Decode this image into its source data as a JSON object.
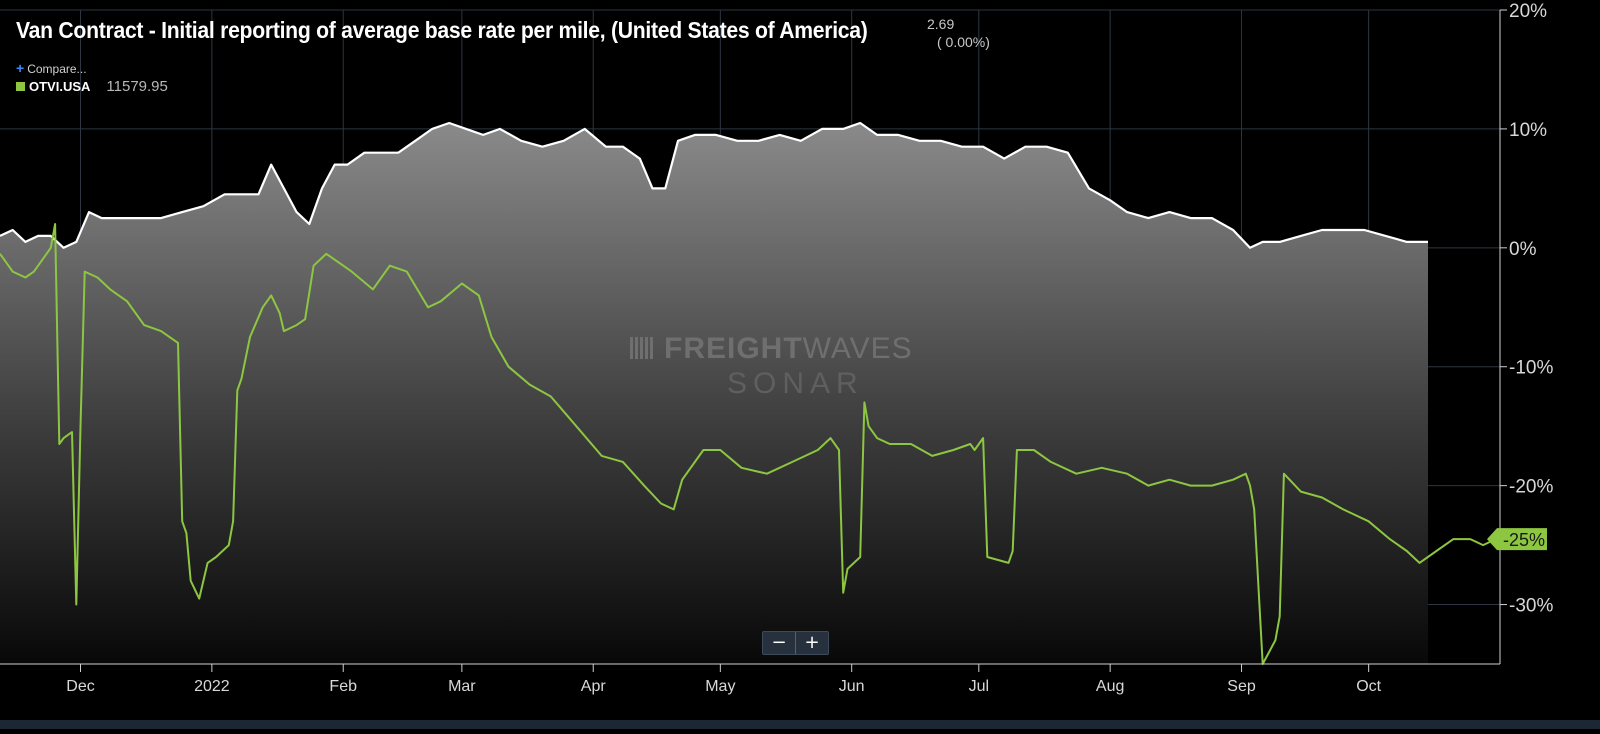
{
  "header": {
    "title": "Van Contract - Initial reporting of average base rate per mile, (United States of America)",
    "last_value": "2.69",
    "last_change": "( 0.00%)",
    "compare_label": "Compare...",
    "compare_symbol": "+"
  },
  "legend": [
    {
      "name": "OTVI.USA",
      "value": "11579.95",
      "color": "#8dc641"
    }
  ],
  "watermark": {
    "line1_bold": "FREIGHT",
    "line1_light": "WAVES",
    "line2": "SONAR"
  },
  "zoom": {
    "minus": "−",
    "plus": "+"
  },
  "colors": {
    "primary_line": "#ffffff",
    "compare_line": "#8dc641",
    "background": "#000000",
    "grid": "#2c3642"
  },
  "chart_data": {
    "type": "area",
    "title": "Van Contract - Initial reporting of average base rate per mile, (United States of America)",
    "xlabel": "",
    "ylabel": "",
    "x_tick_labels": [
      "Dec",
      "2022",
      "Feb",
      "Mar",
      "Apr",
      "May",
      "Jun",
      "Jul",
      "Aug",
      "Sep",
      "Oct"
    ],
    "y_tick_labels": [
      "20%",
      "10%",
      "0%",
      "-10%",
      "-20%",
      "-30%"
    ],
    "ylim": [
      -35,
      20
    ],
    "grid": true,
    "y_axis_position": "right",
    "end_label": "-25%",
    "series": [
      {
        "name": "Van Contract - Initial reporting of average base rate per mile, (United States of America)",
        "style": "area",
        "color": "#ffffff",
        "x": [
          "2021-11-12",
          "2021-11-15",
          "2021-11-18",
          "2021-11-21",
          "2021-11-24",
          "2021-11-27",
          "2021-11-30",
          "2021-12-03",
          "2021-12-06",
          "2021-12-10",
          "2021-12-15",
          "2021-12-20",
          "2021-12-25",
          "2021-12-30",
          "2022-01-04",
          "2022-01-08",
          "2022-01-12",
          "2022-01-15",
          "2022-01-18",
          "2022-01-21",
          "2022-01-24",
          "2022-01-27",
          "2022-01-30",
          "2022-02-02",
          "2022-02-06",
          "2022-02-10",
          "2022-02-14",
          "2022-02-18",
          "2022-02-22",
          "2022-02-26",
          "2022-03-02",
          "2022-03-06",
          "2022-03-10",
          "2022-03-15",
          "2022-03-20",
          "2022-03-25",
          "2022-03-30",
          "2022-04-04",
          "2022-04-08",
          "2022-04-12",
          "2022-04-15",
          "2022-04-18",
          "2022-04-21",
          "2022-04-25",
          "2022-04-30",
          "2022-05-05",
          "2022-05-10",
          "2022-05-15",
          "2022-05-20",
          "2022-05-25",
          "2022-05-30",
          "2022-06-03",
          "2022-06-07",
          "2022-06-12",
          "2022-06-17",
          "2022-06-22",
          "2022-06-27",
          "2022-07-02",
          "2022-07-07",
          "2022-07-12",
          "2022-07-17",
          "2022-07-22",
          "2022-07-27",
          "2022-08-01",
          "2022-08-05",
          "2022-08-10",
          "2022-08-15",
          "2022-08-20",
          "2022-08-25",
          "2022-08-30",
          "2022-09-03",
          "2022-09-06",
          "2022-09-10",
          "2022-09-15",
          "2022-09-20",
          "2022-09-25",
          "2022-09-30",
          "2022-10-05",
          "2022-10-10",
          "2022-10-15"
        ],
        "values": [
          1,
          1.5,
          0.5,
          1,
          1,
          0,
          0.5,
          3,
          2.5,
          2.5,
          2.5,
          2.5,
          3,
          3.5,
          4.5,
          4.5,
          4.5,
          7,
          5,
          3,
          2,
          5,
          7,
          7,
          8,
          8,
          8,
          9,
          10,
          10.5,
          10,
          9.5,
          10,
          9,
          8.5,
          9,
          10,
          8.5,
          8.5,
          7.5,
          5,
          5,
          9,
          9.5,
          9.5,
          9,
          9,
          9.5,
          9,
          10,
          10,
          10.5,
          9.5,
          9.5,
          9,
          9,
          8.5,
          8.5,
          7.5,
          8.5,
          8.5,
          8,
          5,
          4,
          3,
          2.5,
          3,
          2.5,
          2.5,
          1.5,
          0,
          0.5,
          0.5,
          1,
          1.5,
          1.5,
          1.5,
          1,
          0.5,
          0.5
        ]
      },
      {
        "name": "OTVI.USA",
        "style": "line",
        "color": "#8dc641",
        "x": [
          "2021-11-12",
          "2021-11-15",
          "2021-11-18",
          "2021-11-20",
          "2021-11-22",
          "2021-11-24",
          "2021-11-25",
          "2021-11-26",
          "2021-11-27",
          "2021-11-29",
          "2021-11-30",
          "2021-12-01",
          "2021-12-02",
          "2021-12-05",
          "2021-12-08",
          "2021-12-12",
          "2021-12-16",
          "2021-12-20",
          "2021-12-24",
          "2021-12-25",
          "2021-12-26",
          "2021-12-27",
          "2021-12-29",
          "2021-12-31",
          "2022-01-02",
          "2022-01-05",
          "2022-01-06",
          "2022-01-07",
          "2022-01-08",
          "2022-01-10",
          "2022-01-13",
          "2022-01-15",
          "2022-01-17",
          "2022-01-18",
          "2022-01-21",
          "2022-01-23",
          "2022-01-25",
          "2022-01-28",
          "2022-02-03",
          "2022-02-08",
          "2022-02-12",
          "2022-02-16",
          "2022-02-21",
          "2022-02-24",
          "2022-03-01",
          "2022-03-05",
          "2022-03-08",
          "2022-03-12",
          "2022-03-17",
          "2022-03-22",
          "2022-03-28",
          "2022-04-03",
          "2022-04-08",
          "2022-04-13",
          "2022-04-17",
          "2022-04-20",
          "2022-04-22",
          "2022-04-27",
          "2022-05-01",
          "2022-05-06",
          "2022-05-12",
          "2022-05-18",
          "2022-05-24",
          "2022-05-27",
          "2022-05-29",
          "2022-05-30",
          "2022-05-31",
          "2022-06-03",
          "2022-06-04",
          "2022-06-05",
          "2022-06-07",
          "2022-06-10",
          "2022-06-15",
          "2022-06-20",
          "2022-06-25",
          "2022-06-29",
          "2022-06-30",
          "2022-07-02",
          "2022-07-03",
          "2022-07-08",
          "2022-07-09",
          "2022-07-10",
          "2022-07-14",
          "2022-07-18",
          "2022-07-24",
          "2022-07-30",
          "2022-08-05",
          "2022-08-10",
          "2022-08-15",
          "2022-08-20",
          "2022-08-25",
          "2022-08-30",
          "2022-09-02",
          "2022-09-03",
          "2022-09-04",
          "2022-09-06",
          "2022-09-09",
          "2022-09-10",
          "2022-09-11",
          "2022-09-15",
          "2022-09-20",
          "2022-09-25",
          "2022-10-01",
          "2022-10-06",
          "2022-10-10",
          "2022-10-13",
          "2022-10-17",
          "2022-10-21",
          "2022-10-25",
          "2022-10-28",
          "2022-10-31"
        ],
        "values": [
          -0.5,
          -2,
          -2.5,
          -2,
          -1,
          0,
          2,
          -16.5,
          -16,
          -15.5,
          -30,
          -15,
          -2,
          -2.5,
          -3.5,
          -4.5,
          -6.5,
          -7,
          -8,
          -23,
          -24,
          -28,
          -29.5,
          -26.5,
          -26,
          -25,
          -23,
          -12,
          -11,
          -7.5,
          -5,
          -4,
          -5.5,
          -7,
          -6.5,
          -6,
          -1.5,
          -0.5,
          -2,
          -3.5,
          -1.5,
          -2,
          -5,
          -4.5,
          -3,
          -4,
          -7.5,
          -10,
          -11.5,
          -12.5,
          -15,
          -17.5,
          -18,
          -20,
          -21.5,
          -22,
          -19.5,
          -17,
          -17,
          -18.5,
          -19,
          -18,
          -17,
          -16,
          -17,
          -29,
          -27,
          -26,
          -13,
          -15,
          -16,
          -16.5,
          -16.5,
          -17.5,
          -17,
          -16.5,
          -17,
          -16,
          -26,
          -26.5,
          -25.5,
          -17,
          -17,
          -18,
          -19,
          -18.5,
          -19,
          -20,
          -19.5,
          -20,
          -20,
          -19.5,
          -19,
          -20,
          -22,
          -35,
          -33,
          -31,
          -19,
          -20.5,
          -21,
          -22,
          -23,
          -24.5,
          -25.5,
          -26.5,
          -25.5,
          -24.5,
          -24.5,
          -25,
          -24.5
        ]
      }
    ]
  }
}
